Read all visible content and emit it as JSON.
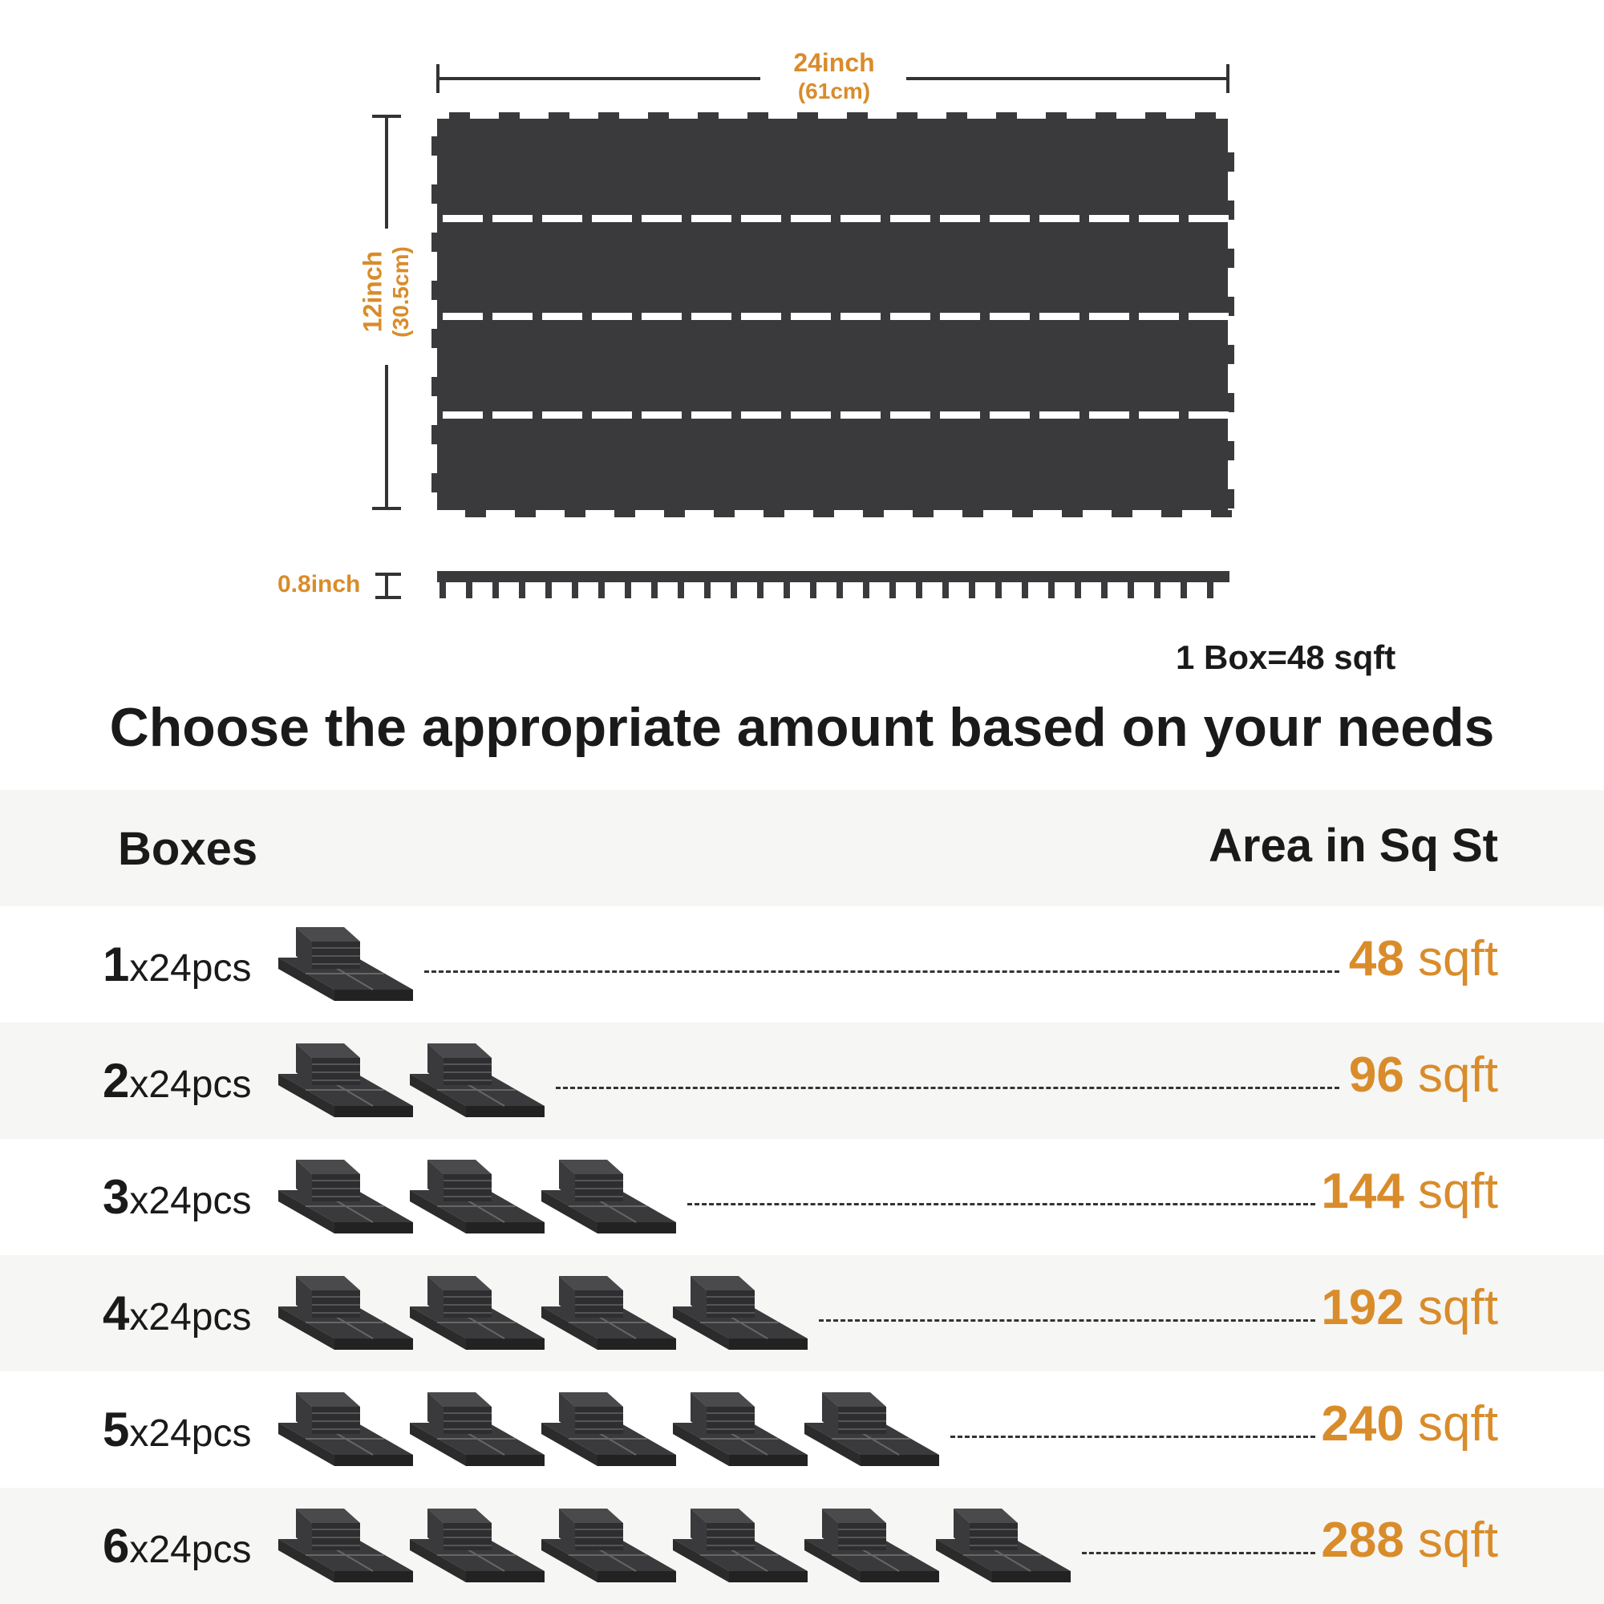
{
  "dimensions": {
    "width_label": "24inch",
    "width_metric": "(61cm)",
    "height_label": "12inch",
    "height_metric": "(30.5cm)",
    "thickness_label": "0.8inch"
  },
  "box_note": "1 Box=48 sqft",
  "headline": "Choose the appropriate amount based on your needs",
  "table": {
    "col_boxes": "Boxes",
    "col_area": "Area in Sq St",
    "rows": [
      {
        "count": "1",
        "pcs": "x24pcs",
        "area_num": "48",
        "area_unit": " sqft",
        "icons": 1
      },
      {
        "count": "2",
        "pcs": "x24pcs",
        "area_num": "96",
        "area_unit": " sqft",
        "icons": 2
      },
      {
        "count": "3",
        "pcs": "x24pcs",
        "area_num": "144",
        "area_unit": " sqft",
        "icons": 3
      },
      {
        "count": "4",
        "pcs": "x24pcs",
        "area_num": "192",
        "area_unit": " sqft",
        "icons": 4
      },
      {
        "count": "5",
        "pcs": "x24pcs",
        "area_num": "240",
        "area_unit": " sqft",
        "icons": 5
      },
      {
        "count": "6",
        "pcs": "x24pcs",
        "area_num": "288",
        "area_unit": " sqft",
        "icons": 6
      }
    ]
  },
  "colors": {
    "accent": "#d98c2b",
    "tile": "#3a3a3c",
    "band": "#f6f6f4"
  }
}
